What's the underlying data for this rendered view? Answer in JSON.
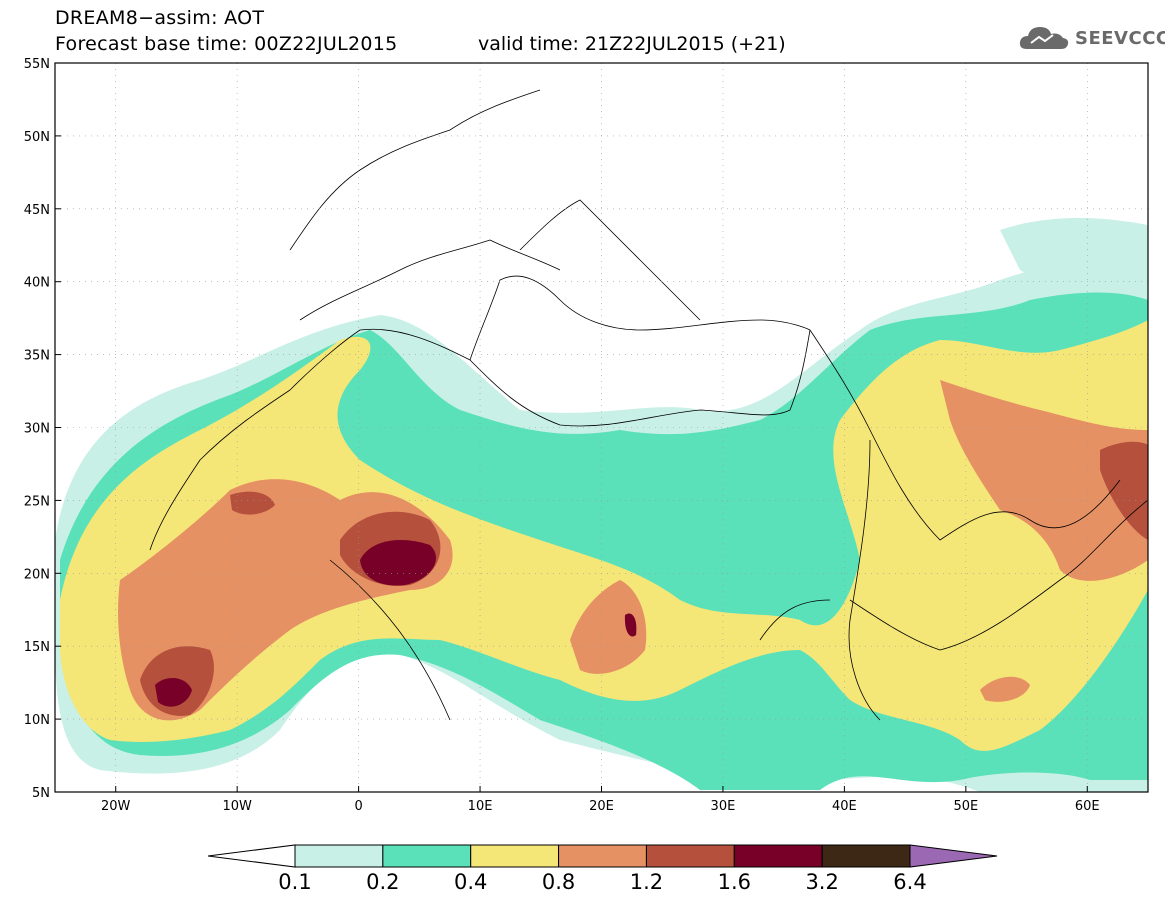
{
  "header": {
    "title": "DREAM8−assim: AOT",
    "base_time": "Forecast base time: 00Z22JUL2015",
    "valid_time": "valid time: 21Z22JUL2015 (+21)"
  },
  "logo": {
    "text": "SEEVCCC",
    "icon": "cloud-icon"
  },
  "map": {
    "lon_range": [
      -25,
      65
    ],
    "lat_range": [
      5,
      55
    ],
    "lat_ticks": [
      "5N",
      "10N",
      "15N",
      "20N",
      "25N",
      "30N",
      "35N",
      "40N",
      "45N",
      "50N",
      "55N"
    ],
    "lon_ticks": [
      "20W",
      "10W",
      "0",
      "10E",
      "20E",
      "30E",
      "40E",
      "50E",
      "60E"
    ]
  },
  "colorbar": {
    "labels": [
      "0.1",
      "0.2",
      "0.4",
      "0.8",
      "1.2",
      "1.6",
      "3.2",
      "6.4"
    ],
    "colors": [
      "#ffffff",
      "#c8f0e6",
      "#5ae1b9",
      "#f5e678",
      "#e69164",
      "#b4503c",
      "#780028",
      "#3c2814",
      "#9b69b4"
    ]
  }
}
